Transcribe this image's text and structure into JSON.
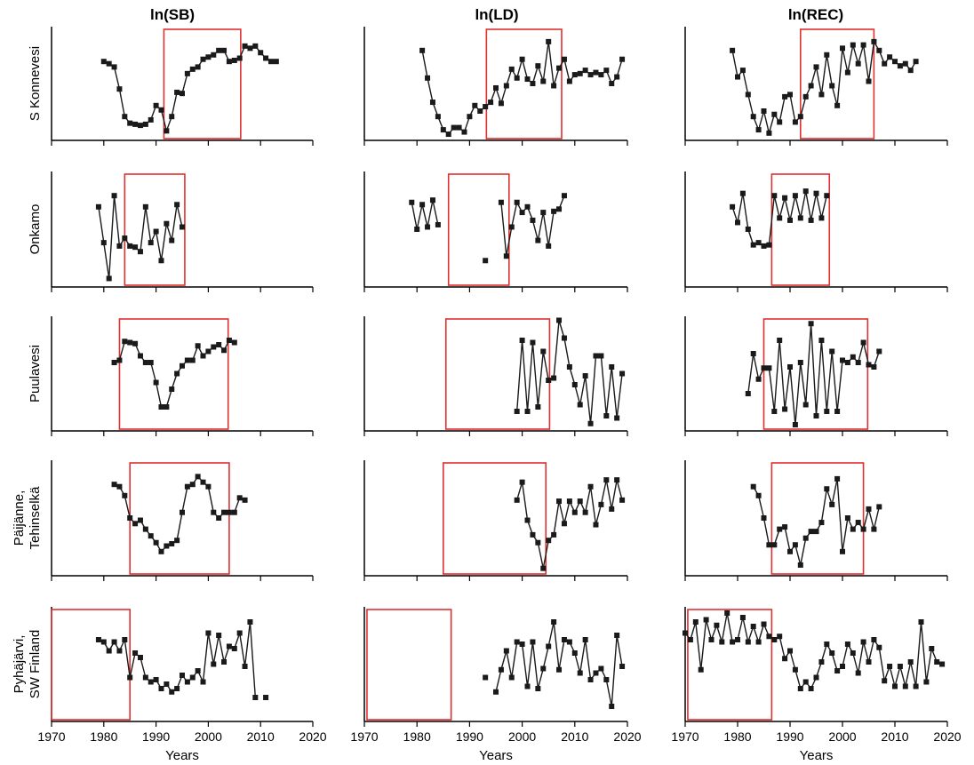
{
  "figure": {
    "columns": [
      "ln(SB)",
      "ln(LD)",
      "ln(REC)"
    ],
    "rows": [
      [
        "S Konnevesi"
      ],
      [
        "Onkamo"
      ],
      [
        "Puulavesi"
      ],
      [
        "Päijänne,",
        "Tehinselkä"
      ],
      [
        "Pyhäjärvi,",
        "SW Finland"
      ]
    ],
    "xlabel": "Years",
    "xticks": [
      "1970",
      "1980",
      "1990",
      "2000",
      "2010",
      "2020"
    ]
  },
  "colors": {
    "series": "#1a1a1a",
    "highlight": "#e03030",
    "axis": "#000000"
  },
  "chart_data": {
    "type": "line",
    "xlim": [
      1970,
      2020
    ],
    "ylim": [
      0,
      1
    ],
    "y_units": "relative (no y tick labels shown)",
    "grid": false,
    "panels": [
      {
        "row": "S Konnevesi",
        "column": "ln(SB)",
        "box": [
          1991.5,
          2006.2
        ],
        "x": [
          1980,
          1981,
          1982,
          1983,
          1984,
          1985,
          1986,
          1987,
          1988,
          1989,
          1990,
          1991,
          1992,
          1993,
          1994,
          1995,
          1996,
          1997,
          1998,
          1999,
          2000,
          2001,
          2002,
          2003,
          2004,
          2005,
          2006,
          2007,
          2008,
          2009,
          2010,
          2011,
          2012,
          2013
        ],
        "y": [
          0.7,
          0.68,
          0.65,
          0.45,
          0.2,
          0.14,
          0.13,
          0.12,
          0.13,
          0.17,
          0.3,
          0.26,
          0.07,
          0.2,
          0.42,
          0.41,
          0.59,
          0.63,
          0.65,
          0.72,
          0.74,
          0.76,
          0.8,
          0.8,
          0.7,
          0.71,
          0.73,
          0.84,
          0.82,
          0.84,
          0.78,
          0.73,
          0.7,
          0.7
        ]
      },
      {
        "row": "S Konnevesi",
        "column": "ln(LD)",
        "box": [
          1993.2,
          2007.5
        ],
        "x": [
          1981,
          1982,
          1983,
          1984,
          1985,
          1986,
          1987,
          1988,
          1989,
          1990,
          1991,
          1992,
          1993,
          1994,
          1995,
          1996,
          1997,
          1998,
          1999,
          2000,
          2001,
          2002,
          2003,
          2004,
          2005,
          2006,
          2007,
          2008,
          2009,
          2010,
          2011,
          2012,
          2013,
          2014,
          2015,
          2016,
          2017,
          2018,
          2019
        ],
        "y": [
          0.8,
          0.55,
          0.33,
          0.2,
          0.08,
          0.04,
          0.1,
          0.1,
          0.06,
          0.2,
          0.3,
          0.25,
          0.29,
          0.33,
          0.46,
          0.32,
          0.48,
          0.63,
          0.55,
          0.72,
          0.54,
          0.5,
          0.66,
          0.52,
          0.88,
          0.48,
          0.64,
          0.72,
          0.52,
          0.58,
          0.59,
          0.62,
          0.58,
          0.6,
          0.58,
          0.62,
          0.5,
          0.56,
          0.72
        ]
      },
      {
        "row": "S Konnevesi",
        "column": "ln(REC)",
        "box": [
          1992.0,
          2006.0
        ],
        "x": [
          1979,
          1980,
          1981,
          1982,
          1983,
          1984,
          1985,
          1986,
          1987,
          1988,
          1989,
          1990,
          1991,
          1992,
          1993,
          1994,
          1995,
          1996,
          1997,
          1998,
          1999,
          2000,
          2001,
          2002,
          2003,
          2004,
          2005,
          2006,
          2007,
          2008,
          2009,
          2010,
          2011,
          2012,
          2013,
          2014
        ],
        "y": [
          0.8,
          0.56,
          0.62,
          0.4,
          0.2,
          0.08,
          0.25,
          0.05,
          0.22,
          0.15,
          0.38,
          0.4,
          0.15,
          0.2,
          0.38,
          0.48,
          0.65,
          0.4,
          0.76,
          0.48,
          0.3,
          0.82,
          0.6,
          0.85,
          0.68,
          0.85,
          0.52,
          0.88,
          0.8,
          0.68,
          0.74,
          0.7,
          0.66,
          0.68,
          0.62,
          0.7
        ]
      },
      {
        "row": "Onkamo",
        "column": "ln(SB)",
        "box": [
          1984.0,
          1995.5
        ],
        "x": [
          1979,
          1980,
          1981,
          1982,
          1983,
          1984,
          1985,
          1986,
          1987,
          1988,
          1989,
          1990,
          1991,
          1992,
          1993,
          1994,
          1995
        ],
        "y": [
          0.7,
          0.38,
          0.06,
          0.8,
          0.35,
          0.42,
          0.35,
          0.34,
          0.3,
          0.7,
          0.38,
          0.48,
          0.22,
          0.55,
          0.4,
          0.72,
          0.52
        ]
      },
      {
        "row": "Onkamo",
        "column": "ln(LD)",
        "box": [
          1986.0,
          1997.5
        ],
        "x": [
          1979,
          1980,
          1981,
          1982,
          1983,
          1984,
          1993,
          1996,
          1997,
          1998,
          1999,
          2000,
          2001,
          2002,
          2003,
          2004,
          2005,
          2006,
          2007,
          2008
        ],
        "y": [
          0.74,
          0.5,
          0.72,
          0.52,
          0.76,
          0.54,
          0.22,
          0.74,
          0.26,
          0.52,
          0.74,
          0.65,
          0.7,
          0.58,
          0.4,
          0.65,
          0.35,
          0.66,
          0.68,
          0.8
        ]
      },
      {
        "row": "Onkamo",
        "column": "ln(REC)",
        "box": [
          1986.5,
          1997.5
        ],
        "x": [
          1979,
          1980,
          1981,
          1982,
          1983,
          1984,
          1985,
          1986,
          1987,
          1988,
          1989,
          1990,
          1991,
          1992,
          1993,
          1994,
          1995,
          1996,
          1997
        ],
        "y": [
          0.7,
          0.56,
          0.82,
          0.5,
          0.36,
          0.38,
          0.35,
          0.36,
          0.8,
          0.6,
          0.78,
          0.58,
          0.8,
          0.6,
          0.84,
          0.58,
          0.82,
          0.6,
          0.8
        ]
      },
      {
        "row": "Puulavesi",
        "column": "ln(SB)",
        "box": [
          1983.0,
          2003.8
        ],
        "x": [
          1982,
          1983,
          1984,
          1985,
          1986,
          1987,
          1988,
          1989,
          1990,
          1991,
          1992,
          1993,
          1994,
          1995,
          1996,
          1997,
          1998,
          1999,
          2000,
          2001,
          2002,
          2003,
          2004,
          2005
        ],
        "y": [
          0.6,
          0.62,
          0.79,
          0.78,
          0.77,
          0.66,
          0.6,
          0.6,
          0.42,
          0.2,
          0.2,
          0.36,
          0.5,
          0.57,
          0.62,
          0.62,
          0.75,
          0.66,
          0.7,
          0.74,
          0.76,
          0.71,
          0.8,
          0.78
        ]
      },
      {
        "row": "Puulavesi",
        "column": "ln(LD)",
        "box": [
          1985.5,
          2005.2
        ],
        "x": [
          1999,
          2000,
          2001,
          2002,
          2003,
          2004,
          2005,
          2006,
          2007,
          2008,
          2009,
          2010,
          2011,
          2012,
          2013,
          2014,
          2015,
          2016,
          2017,
          2018,
          2019
        ],
        "y": [
          0.16,
          0.8,
          0.16,
          0.78,
          0.2,
          0.7,
          0.44,
          0.46,
          0.98,
          0.82,
          0.56,
          0.4,
          0.22,
          0.48,
          0.05,
          0.66,
          0.66,
          0.12,
          0.56,
          0.1,
          0.5
        ]
      },
      {
        "row": "Puulavesi",
        "column": "ln(REC)",
        "box": [
          1985.0,
          2004.8
        ],
        "x": [
          1982,
          1983,
          1984,
          1985,
          1986,
          1987,
          1988,
          1989,
          1990,
          1991,
          1992,
          1993,
          1994,
          1995,
          1996,
          1997,
          1998,
          1999,
          2000,
          2001,
          2002,
          2003,
          2004,
          2005,
          2006,
          2007
        ],
        "y": [
          0.32,
          0.68,
          0.45,
          0.55,
          0.55,
          0.16,
          0.8,
          0.18,
          0.56,
          0.04,
          0.6,
          0.22,
          0.95,
          0.12,
          0.8,
          0.16,
          0.7,
          0.16,
          0.62,
          0.6,
          0.65,
          0.6,
          0.78,
          0.58,
          0.56,
          0.7
        ]
      },
      {
        "row": "Päijänne, Tehinselkä",
        "column": "ln(SB)",
        "box": [
          1985.0,
          2004.0
        ],
        "x": [
          1982,
          1983,
          1984,
          1985,
          1986,
          1987,
          1988,
          1989,
          1990,
          1991,
          1992,
          1993,
          1994,
          1995,
          1996,
          1997,
          1998,
          1999,
          2000,
          2001,
          2002,
          2003,
          2004,
          2005,
          2006,
          2007
        ],
        "y": [
          0.8,
          0.78,
          0.7,
          0.5,
          0.45,
          0.48,
          0.4,
          0.34,
          0.28,
          0.2,
          0.25,
          0.27,
          0.3,
          0.55,
          0.78,
          0.8,
          0.87,
          0.82,
          0.78,
          0.55,
          0.5,
          0.55,
          0.55,
          0.55,
          0.68,
          0.66
        ]
      },
      {
        "row": "Päijänne, Tehinselkä",
        "column": "ln(LD)",
        "box": [
          1985.0,
          2004.5
        ],
        "x": [
          1999,
          2000,
          2001,
          2002,
          2003,
          2004,
          2005,
          2006,
          2007,
          2008,
          2009,
          2010,
          2011,
          2012,
          2013,
          2014,
          2015,
          2016,
          2017,
          2018,
          2019
        ],
        "y": [
          0.66,
          0.82,
          0.48,
          0.35,
          0.28,
          0.05,
          0.3,
          0.35,
          0.65,
          0.45,
          0.65,
          0.55,
          0.65,
          0.55,
          0.78,
          0.44,
          0.62,
          0.84,
          0.58,
          0.84,
          0.66
        ]
      },
      {
        "row": "Päijänne, Tehinselkä",
        "column": "ln(REC)",
        "box": [
          1986.5,
          2004.0
        ],
        "x": [
          1983,
          1984,
          1985,
          1986,
          1987,
          1988,
          1989,
          1990,
          1991,
          1992,
          1993,
          1994,
          1995,
          1996,
          1997,
          1998,
          1999,
          2000,
          2001,
          2002,
          2003,
          2004,
          2005,
          2006,
          2007
        ],
        "y": [
          0.78,
          0.7,
          0.5,
          0.26,
          0.26,
          0.4,
          0.42,
          0.2,
          0.26,
          0.08,
          0.32,
          0.38,
          0.38,
          0.46,
          0.76,
          0.62,
          0.85,
          0.2,
          0.5,
          0.4,
          0.46,
          0.4,
          0.58,
          0.4,
          0.6
        ]
      },
      {
        "row": "Pyhäjärvi, SW Finland",
        "column": "ln(SB)",
        "box": [
          1970.0,
          1985.0
        ],
        "x": [
          1979,
          1980,
          1981,
          1982,
          1983,
          1984,
          1985,
          1986,
          1987,
          1988,
          1989,
          1990,
          1991,
          1992,
          1993,
          1994,
          1995,
          1996,
          1997,
          1998,
          1999,
          2000,
          2001,
          2002,
          2003,
          2004,
          2005,
          2006,
          2007,
          2008,
          2009,
          2011
        ],
        "y": [
          0.72,
          0.7,
          0.62,
          0.7,
          0.62,
          0.72,
          0.38,
          0.6,
          0.56,
          0.38,
          0.34,
          0.36,
          0.28,
          0.32,
          0.25,
          0.28,
          0.4,
          0.34,
          0.38,
          0.44,
          0.34,
          0.78,
          0.5,
          0.76,
          0.52,
          0.66,
          0.64,
          0.78,
          0.48,
          0.88,
          0.2,
          0.2
        ]
      },
      {
        "row": "Pyhäjärvi, SW Finland",
        "column": "ln(LD)",
        "box": [
          1970.5,
          1986.5
        ],
        "x": [
          1993,
          1995,
          1996,
          1997,
          1998,
          1999,
          2000,
          2001,
          2002,
          2003,
          2004,
          2005,
          2006,
          2007,
          2008,
          2009,
          2010,
          2011,
          2012,
          2013,
          2014,
          2015,
          2016,
          2017,
          2018,
          2019
        ],
        "y": [
          0.38,
          0.25,
          0.45,
          0.62,
          0.38,
          0.7,
          0.68,
          0.3,
          0.7,
          0.28,
          0.46,
          0.66,
          0.88,
          0.45,
          0.72,
          0.7,
          0.6,
          0.42,
          0.72,
          0.36,
          0.42,
          0.46,
          0.36,
          0.12,
          0.76,
          0.48
        ]
      },
      {
        "row": "Pyhäjärvi, SW Finland",
        "column": "ln(REC)",
        "box": [
          1970.5,
          1986.5
        ],
        "x": [
          1970,
          1971,
          1972,
          1973,
          1974,
          1975,
          1976,
          1977,
          1978,
          1979,
          1980,
          1981,
          1982,
          1983,
          1984,
          1985,
          1986,
          1987,
          1988,
          1989,
          1990,
          1991,
          1992,
          1993,
          1994,
          1995,
          1996,
          1997,
          1998,
          1999,
          2000,
          2001,
          2002,
          2003,
          2004,
          2005,
          2006,
          2007,
          2008,
          2009,
          2010,
          2011,
          2012,
          2013,
          2014,
          2015,
          2016,
          2017,
          2018,
          2019
        ],
        "y": [
          0.78,
          0.72,
          0.88,
          0.45,
          0.9,
          0.72,
          0.85,
          0.7,
          0.96,
          0.7,
          0.72,
          0.92,
          0.7,
          0.84,
          0.7,
          0.86,
          0.75,
          0.72,
          0.75,
          0.55,
          0.62,
          0.45,
          0.28,
          0.34,
          0.28,
          0.38,
          0.52,
          0.68,
          0.6,
          0.44,
          0.48,
          0.68,
          0.6,
          0.42,
          0.7,
          0.52,
          0.72,
          0.65,
          0.35,
          0.48,
          0.3,
          0.48,
          0.3,
          0.52,
          0.3,
          0.88,
          0.34,
          0.64,
          0.52,
          0.5
        ]
      }
    ]
  }
}
